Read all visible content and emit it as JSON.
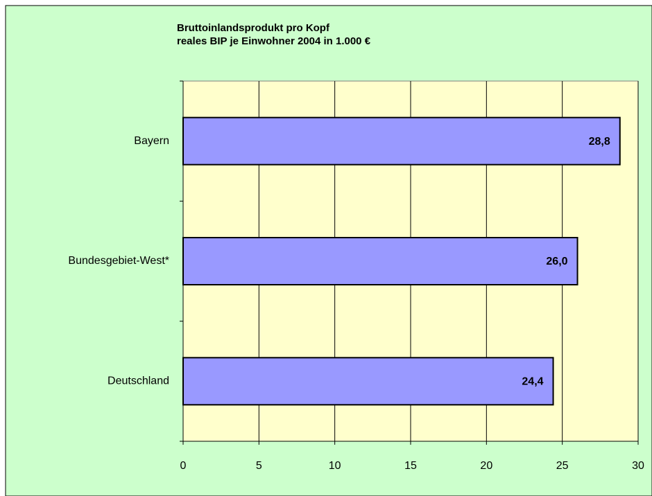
{
  "chart_data": {
    "type": "barh",
    "title": "Bruttoinlandsprodukt pro Kopf",
    "subtitle": "reales BIP je Einwohner 2004 in 1.000 €",
    "categories": [
      "Bayern",
      "Bundesgebiet-West*",
      "Deutschland"
    ],
    "values": [
      28.8,
      26.0,
      24.4
    ],
    "value_labels": [
      "28,8",
      "26,0",
      "24,4"
    ],
    "color": "#9999ff",
    "xlim": [
      0,
      30
    ],
    "xticks": [
      0,
      5,
      10,
      15,
      20,
      25,
      30
    ],
    "grid": true
  }
}
